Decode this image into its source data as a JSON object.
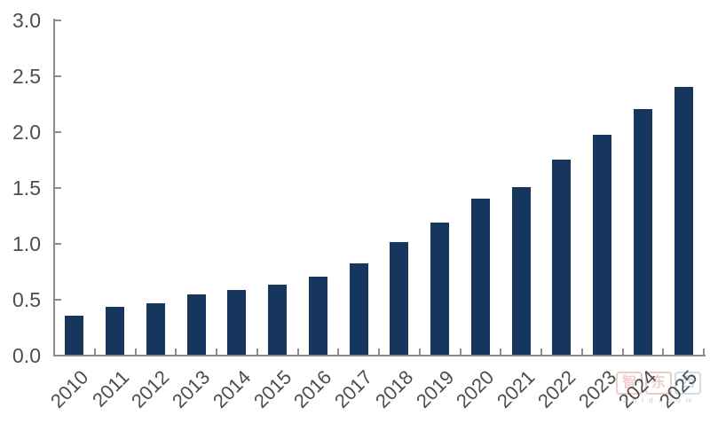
{
  "chart_data": {
    "type": "bar",
    "title": "",
    "xlabel": "",
    "ylabel": "",
    "categories": [
      "2010",
      "2011",
      "2012",
      "2013",
      "2014",
      "2015",
      "2016",
      "2017",
      "2018",
      "2019",
      "2020",
      "2021",
      "2022",
      "2023",
      "2024",
      "2025"
    ],
    "values": [
      0.35,
      0.43,
      0.46,
      0.54,
      0.58,
      0.63,
      0.7,
      0.82,
      1.01,
      1.18,
      1.4,
      1.5,
      1.75,
      1.97,
      2.2,
      2.4
    ],
    "ylim": [
      0.0,
      3.0
    ],
    "ytick_step": 0.5,
    "ytick_labels": [
      "0.0",
      "0.5",
      "1.0",
      "1.5",
      "2.0",
      "2.5",
      "3.0"
    ],
    "grid": false,
    "legend": "none",
    "bar_color": "#16365E",
    "axis_color": "#8c8c8c",
    "label_color": "#4d4d4d"
  },
  "watermark": {
    "chars": [
      "智",
      "东",
      "西"
    ],
    "subtext_left": "z h i d x",
    "subtext_right": "c o m",
    "red": "#c0392b",
    "blue": "#4a7ab5"
  }
}
